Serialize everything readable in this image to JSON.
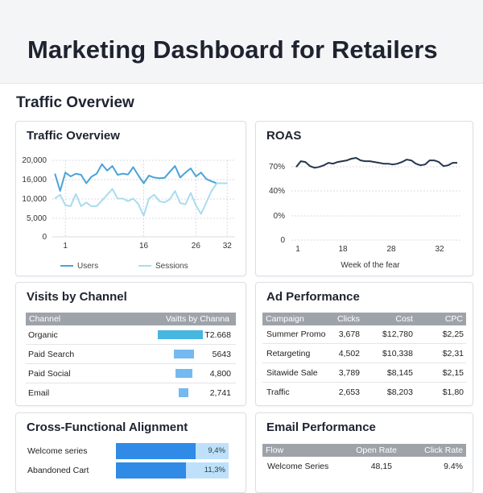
{
  "header": {
    "title": "Marketing Dashboard  for Retailers"
  },
  "section_title": "Traffic Overview",
  "traffic": {
    "title": "Traffic Overview",
    "legend": [
      "Users",
      "Sessions"
    ],
    "colors": {
      "users": "#4aa3d8",
      "sessions": "#a9dcef"
    }
  },
  "roas": {
    "title": "ROAS",
    "xlabel": "Week of the fear",
    "color": "#24344d"
  },
  "visits": {
    "title": "Visits by Channel",
    "headers": [
      "Channel",
      "Vaitts by Channa"
    ],
    "rows": [
      {
        "channel": "Organic",
        "value": "T2.668",
        "amount": 12668,
        "color": "#47b6e0"
      },
      {
        "channel": "Paid Search",
        "value": "5643",
        "amount": 5643,
        "color": "#74b9ef"
      },
      {
        "channel": "Paid Social",
        "value": "4,800",
        "amount": 4800,
        "color": "#74b9ef"
      },
      {
        "channel": "Email",
        "value": "2,741",
        "amount": 2741,
        "color": "#74b9ef"
      }
    ]
  },
  "ads": {
    "title": "Ad Performance",
    "headers": [
      "Campaign",
      "Clicks",
      "Cost",
      "CPC"
    ],
    "rows": [
      {
        "campaign": "Summer Promo",
        "clicks": "3,678",
        "cost": "$12,780",
        "cpc": "$2,25"
      },
      {
        "campaign": "Retargeting",
        "clicks": "4,502",
        "cost": "$10,338",
        "cpc": "$2,31"
      },
      {
        "campaign": "Sitawide Sale",
        "clicks": "3,789",
        "cost": "$8,145",
        "cpc": "$2,15"
      },
      {
        "campaign": "Traffic",
        "clicks": "2,653",
        "cost": "$8,203",
        "cpc": "$1,80"
      }
    ]
  },
  "alignment": {
    "title": "Cross-Functional Alignment",
    "rows": [
      {
        "label": "Welcome series",
        "value": "9,4%",
        "fill": 0.71
      },
      {
        "label": "Abandoned Cart",
        "value": "11,3%",
        "fill": 0.62
      }
    ]
  },
  "email": {
    "title": "Email Performance",
    "headers": [
      "Flow",
      "Open Rate",
      "Click Rate"
    ],
    "rows": [
      {
        "flow": "Welcome Series",
        "open": "48,15",
        "click": "9.4%"
      }
    ]
  },
  "chart_data": [
    {
      "type": "line",
      "title": "Traffic Overview",
      "x_ticks": [
        1,
        16,
        26,
        32
      ],
      "y_ticks": [
        "20,000",
        "16,000",
        "10,000",
        "5,000",
        "0"
      ],
      "ylim": [
        0,
        20000
      ],
      "xlim": [
        -1.5,
        33.5
      ],
      "grid": true,
      "legend_position": "bottom",
      "x": [
        -1,
        0,
        1,
        2,
        3,
        4,
        5,
        6,
        7,
        8,
        9,
        10,
        11,
        12,
        13,
        14,
        15,
        16,
        17,
        18,
        19,
        20,
        21,
        22,
        23,
        24,
        25,
        26,
        27,
        28,
        29,
        30,
        31,
        32
      ],
      "series": [
        {
          "name": "Users",
          "values": [
            16500,
            12000,
            16800,
            15800,
            16500,
            16200,
            14000,
            15700,
            16500,
            19000,
            17300,
            18500,
            16200,
            16500,
            16300,
            18200,
            16000,
            14000,
            16000,
            15500,
            15300,
            15400,
            17000,
            18500,
            15500,
            16800,
            17900,
            15800,
            16800,
            15100,
            14500,
            14000,
            14000,
            14000
          ]
        },
        {
          "name": "Sessions",
          "values": [
            10000,
            11000,
            8300,
            8000,
            11200,
            8000,
            9000,
            8000,
            8000,
            9500,
            11000,
            12500,
            10000,
            10000,
            9300,
            10000,
            8500,
            5500,
            10000,
            11000,
            9300,
            9000,
            9800,
            12000,
            8800,
            8500,
            11500,
            8200,
            6000,
            9000,
            12000,
            14000,
            14000,
            14000
          ]
        }
      ]
    },
    {
      "type": "line",
      "title": "ROAS",
      "xlabel": "Week of the fear",
      "x_ticks": [
        1,
        18,
        28,
        32
      ],
      "y_ticks": [
        "70%",
        "40%",
        "0%",
        "0"
      ],
      "ylim": [
        -20,
        80
      ],
      "grid": true,
      "x": [
        0,
        1,
        2,
        3,
        4,
        5,
        6,
        7,
        8,
        9,
        10,
        11,
        12,
        13,
        14,
        15,
        16,
        17,
        18,
        19,
        20,
        21,
        22,
        23,
        24,
        25,
        26,
        27,
        28,
        29,
        30,
        31,
        32,
        33,
        34,
        35
      ],
      "series": [
        {
          "name": "ROAS",
          "values": [
            68,
            75,
            74,
            69,
            67,
            68,
            70,
            73,
            72,
            74,
            75,
            76,
            78,
            79,
            76,
            75,
            75,
            74,
            73,
            72,
            72,
            71,
            72,
            74,
            77,
            76,
            72,
            70,
            71,
            76,
            76,
            74,
            69,
            70,
            73,
            73
          ]
        }
      ]
    }
  ]
}
